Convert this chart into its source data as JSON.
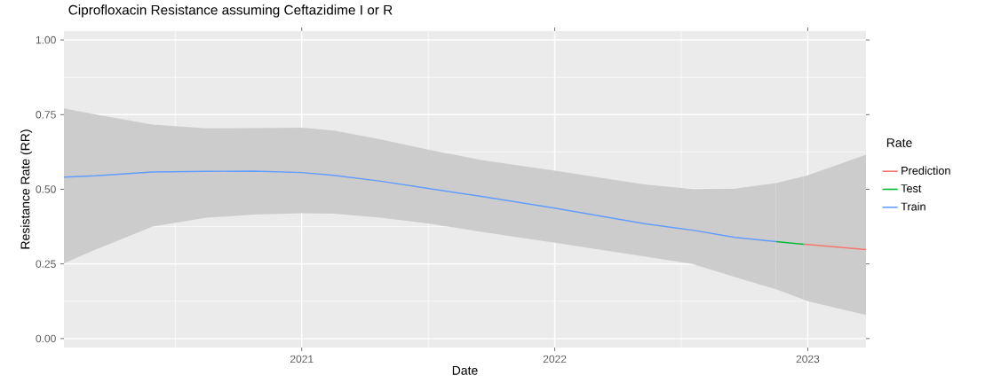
{
  "chart_data": {
    "type": "line",
    "title": "Ciprofloxacin  Resistance assuming  Ceftazidime I or R",
    "xlabel": "Date",
    "ylabel": "Resistance Rate (RR)",
    "legend_title": "Rate",
    "legend": "right",
    "grid": true,
    "xlim": [
      "2020-01-23",
      "2023-03-26"
    ],
    "ylim": [
      -0.03,
      1.03
    ],
    "xticks": [
      {
        "value": "2021",
        "label": "2021"
      },
      {
        "value": "2022",
        "label": "2022"
      },
      {
        "value": "2023",
        "label": "2023"
      }
    ],
    "yticks": [
      {
        "value": 0,
        "label": "0.00"
      },
      {
        "value": 0.25,
        "label": "0.25"
      },
      {
        "value": 0.5,
        "label": "0.50"
      },
      {
        "value": 0.75,
        "label": "0.75"
      },
      {
        "value": 1,
        "label": "1.00"
      }
    ],
    "series": [
      {
        "name": "Prediction",
        "color": "#f8766d",
        "x": [
          "2022-12-26",
          "2023-01-01",
          "2023-03-26"
        ],
        "values": [
          0.316,
          0.315,
          0.298
        ],
        "upper": [
          0.543,
          0.547,
          0.616
        ],
        "lower": [
          0.131,
          0.125,
          0.079
        ]
      },
      {
        "name": "Test",
        "color": "#00ba38",
        "x": [
          "2022-11-16",
          "2022-12-26"
        ],
        "values": [
          0.325,
          0.316
        ],
        "upper": [
          0.521,
          0.543
        ],
        "lower": [
          0.165,
          0.131
        ]
      },
      {
        "name": "Train",
        "color": "#619cff",
        "x": [
          "2020-01-23",
          "2020-03-08",
          "2020-05-30",
          "2020-08-16",
          "2020-10-24",
          "2021-01-01",
          "2021-02-16",
          "2021-04-25",
          "2021-07-02",
          "2021-09-15",
          "2022-01-01",
          "2022-05-10",
          "2022-07-19",
          "2022-09-18",
          "2022-11-16"
        ],
        "values": [
          0.541,
          0.545,
          0.558,
          0.56,
          0.561,
          0.556,
          0.547,
          0.527,
          0.503,
          0.477,
          0.437,
          0.385,
          0.363,
          0.339,
          0.325
        ],
        "upper": [
          0.771,
          0.751,
          0.717,
          0.704,
          0.705,
          0.706,
          0.697,
          0.667,
          0.633,
          0.599,
          0.562,
          0.516,
          0.501,
          0.502,
          0.521
        ],
        "lower": [
          0.252,
          0.297,
          0.375,
          0.405,
          0.415,
          0.42,
          0.418,
          0.405,
          0.386,
          0.358,
          0.321,
          0.275,
          0.25,
          0.206,
          0.165
        ]
      }
    ]
  }
}
